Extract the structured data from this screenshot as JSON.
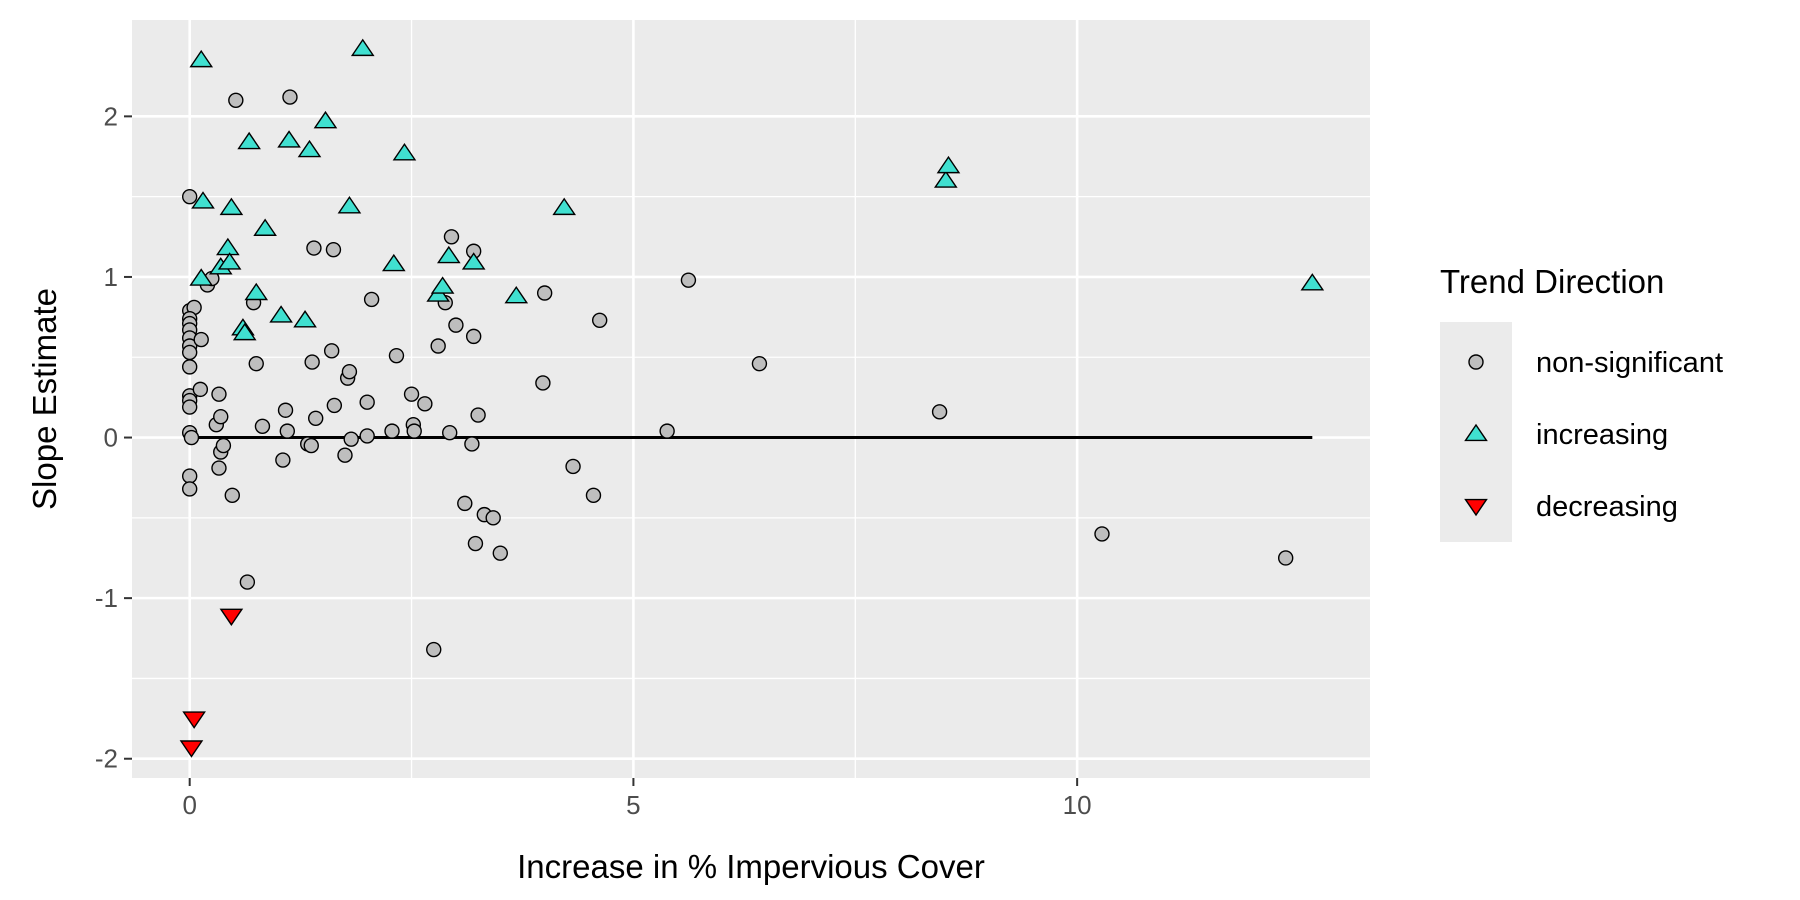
{
  "chart_data": {
    "type": "scatter",
    "title": "",
    "xlabel": "Increase in % Impervious Cover",
    "ylabel": "Slope Estimate",
    "xlim": [
      -0.65,
      13.3
    ],
    "ylim": [
      -2.12,
      2.6
    ],
    "x_ticks": [
      0,
      5,
      10
    ],
    "x_tick_labels": [
      "0",
      "5",
      "10"
    ],
    "y_ticks": [
      -2,
      -1,
      0,
      1,
      2
    ],
    "y_tick_labels": [
      "-2",
      "-1",
      "0",
      "1",
      "2"
    ],
    "grid": true,
    "legend_position": "right",
    "reference_line": {
      "y": 0,
      "x_from": 0,
      "x_to": 12.65
    },
    "legend": {
      "title": "Trend Direction",
      "entries": [
        "non-significant",
        "increasing",
        "decreasing"
      ]
    },
    "series": [
      {
        "name": "non-significant",
        "shape": "circle",
        "color": "#bebebe",
        "points": [
          [
            0.0,
            1.5
          ],
          [
            0.0,
            0.79
          ],
          [
            0.05,
            0.81
          ],
          [
            0.0,
            0.74
          ],
          [
            0.0,
            0.71
          ],
          [
            0.0,
            0.67
          ],
          [
            0.0,
            0.62
          ],
          [
            0.0,
            0.57
          ],
          [
            0.0,
            0.53
          ],
          [
            0.0,
            0.44
          ],
          [
            0.0,
            0.26
          ],
          [
            0.0,
            0.23
          ],
          [
            0.0,
            0.19
          ],
          [
            0.0,
            0.03
          ],
          [
            0.02,
            0.0
          ],
          [
            0.0,
            -0.24
          ],
          [
            0.0,
            -0.32
          ],
          [
            0.13,
            0.61
          ],
          [
            0.12,
            0.3
          ],
          [
            0.2,
            0.95
          ],
          [
            0.25,
            0.99
          ],
          [
            0.3,
            0.08
          ],
          [
            0.33,
            0.27
          ],
          [
            0.35,
            0.13
          ],
          [
            0.35,
            -0.09
          ],
          [
            0.38,
            -0.05
          ],
          [
            0.33,
            -0.19
          ],
          [
            0.48,
            -0.36
          ],
          [
            0.52,
            2.1
          ],
          [
            0.65,
            -0.9
          ],
          [
            0.72,
            0.84
          ],
          [
            0.75,
            0.46
          ],
          [
            0.82,
            0.07
          ],
          [
            1.05,
            -0.14
          ],
          [
            1.08,
            0.17
          ],
          [
            1.1,
            0.04
          ],
          [
            1.13,
            2.12
          ],
          [
            1.33,
            -0.04
          ],
          [
            1.37,
            -0.05
          ],
          [
            1.38,
            0.47
          ],
          [
            1.4,
            1.18
          ],
          [
            1.42,
            0.12
          ],
          [
            1.6,
            0.54
          ],
          [
            1.62,
            1.17
          ],
          [
            1.63,
            0.2
          ],
          [
            1.75,
            -0.11
          ],
          [
            1.78,
            0.37
          ],
          [
            1.8,
            0.41
          ],
          [
            1.82,
            -0.01
          ],
          [
            2.0,
            0.22
          ],
          [
            2.0,
            0.01
          ],
          [
            2.05,
            0.86
          ],
          [
            2.28,
            0.04
          ],
          [
            2.33,
            0.51
          ],
          [
            2.5,
            0.27
          ],
          [
            2.52,
            0.08
          ],
          [
            2.53,
            0.04
          ],
          [
            2.65,
            0.21
          ],
          [
            2.75,
            -1.32
          ],
          [
            2.8,
            0.57
          ],
          [
            2.88,
            0.84
          ],
          [
            2.93,
            0.03
          ],
          [
            2.95,
            1.25
          ],
          [
            3.0,
            0.7
          ],
          [
            3.1,
            -0.41
          ],
          [
            3.18,
            -0.04
          ],
          [
            3.2,
            1.16
          ],
          [
            3.2,
            0.63
          ],
          [
            3.22,
            -0.66
          ],
          [
            3.25,
            0.14
          ],
          [
            3.32,
            -0.48
          ],
          [
            3.42,
            -0.5
          ],
          [
            3.5,
            -0.72
          ],
          [
            3.98,
            0.34
          ],
          [
            4.0,
            0.9
          ],
          [
            4.32,
            -0.18
          ],
          [
            4.55,
            -0.36
          ],
          [
            4.62,
            0.73
          ],
          [
            5.38,
            0.04
          ],
          [
            5.62,
            0.98
          ],
          [
            6.42,
            0.46
          ],
          [
            8.45,
            0.16
          ],
          [
            10.28,
            -0.6
          ],
          [
            12.35,
            -0.75
          ]
        ]
      },
      {
        "name": "increasing",
        "shape": "triangle-up",
        "color": "#40e0d0",
        "points": [
          [
            0.13,
            2.35
          ],
          [
            0.15,
            1.47
          ],
          [
            0.13,
            0.99
          ],
          [
            0.35,
            1.06
          ],
          [
            0.43,
            1.18
          ],
          [
            0.45,
            1.09
          ],
          [
            0.47,
            1.43
          ],
          [
            0.6,
            0.68
          ],
          [
            0.62,
            0.65
          ],
          [
            0.67,
            1.84
          ],
          [
            0.75,
            0.9
          ],
          [
            0.85,
            1.3
          ],
          [
            1.03,
            0.76
          ],
          [
            1.12,
            1.85
          ],
          [
            1.3,
            0.73
          ],
          [
            1.35,
            1.79
          ],
          [
            1.53,
            1.97
          ],
          [
            1.95,
            2.42
          ],
          [
            1.8,
            1.44
          ],
          [
            2.3,
            1.08
          ],
          [
            2.42,
            1.77
          ],
          [
            2.8,
            0.89
          ],
          [
            2.85,
            0.94
          ],
          [
            2.92,
            1.13
          ],
          [
            3.2,
            1.09
          ],
          [
            3.68,
            0.88
          ],
          [
            4.22,
            1.43
          ],
          [
            8.52,
            1.6
          ],
          [
            8.55,
            1.69
          ],
          [
            12.65,
            0.96
          ]
        ]
      },
      {
        "name": "decreasing",
        "shape": "triangle-down",
        "color": "#ff0000",
        "points": [
          [
            0.05,
            -1.75
          ],
          [
            0.02,
            -1.93
          ],
          [
            0.47,
            -1.11
          ]
        ]
      }
    ]
  }
}
